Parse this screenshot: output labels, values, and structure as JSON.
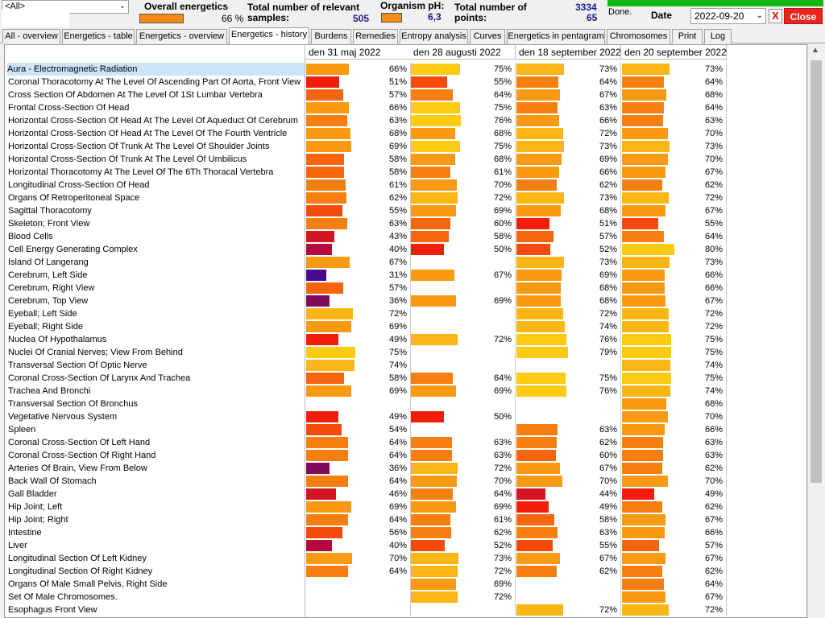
{
  "toolbar": {
    "filter_value": "<All>",
    "overall_energetics_label": "Overall energetics",
    "overall_energetics_value": "66 %",
    "overall_energetics_color": "#f58a14",
    "relevant_samples_label_1": "Total number of relevant",
    "relevant_samples_label_2": "samples:",
    "relevant_samples_value": "505",
    "organism_ph_label": "Organism pH:",
    "organism_ph_value": "6,3",
    "organism_ph_color": "#f58a14",
    "total_points_label_1": "Total number of",
    "total_points_label_2": "points:",
    "total_points_value_1": "3334",
    "total_points_value_2": "65",
    "status": "Done.",
    "date_label": "Date",
    "date_value": "2022-09-20",
    "x_label": "X",
    "close_label": "Close"
  },
  "tabs": [
    {
      "label": "All - overview"
    },
    {
      "label": "Energetics - table"
    },
    {
      "label": "Energetics - overview"
    },
    {
      "label": "Energetics - history",
      "active": true
    },
    {
      "label": "Burdens"
    },
    {
      "label": "Remedies"
    },
    {
      "label": "Entropy analysis"
    },
    {
      "label": "Curves"
    },
    {
      "label": "Energetics in pentagram"
    },
    {
      "label": "Chromosomes"
    },
    {
      "label": "Print"
    },
    {
      "label": "Log"
    }
  ],
  "columns": [
    "den 31 maj 2022",
    "den 28 augusti 2022",
    "den 18 september 2022",
    "den 20 september 2022"
  ],
  "rows": [
    {
      "name": "Aura - Electromagnetic Radiation",
      "values": [
        66,
        75,
        73,
        73
      ],
      "selected": true
    },
    {
      "name": "Coronal Thoracotomy At The Level Of Ascending Part Of Aorta, Front View",
      "values": [
        51,
        55,
        64,
        64
      ]
    },
    {
      "name": "Cross Section Of Abdomen At The Level Of 1St Lumbar Vertebra",
      "values": [
        57,
        64,
        67,
        68
      ]
    },
    {
      "name": "Frontal Cross-Section Of Head",
      "values": [
        66,
        75,
        63,
        64
      ]
    },
    {
      "name": "Horizontal Cross-Section Of Head At The Level Of Aqueduct Of Cerebrum",
      "values": [
        63,
        76,
        66,
        63
      ]
    },
    {
      "name": "Horizontal Cross-Section Of Head At The Level Of The Fourth Ventricle",
      "values": [
        68,
        68,
        72,
        70
      ]
    },
    {
      "name": "Horizontal Cross-Section Of Trunk At The Level Of Shoulder Joints",
      "values": [
        69,
        75,
        73,
        73
      ]
    },
    {
      "name": "Horizontal Cross-Section Of Trunk At The Level Of Umbilicus",
      "values": [
        58,
        68,
        69,
        70
      ]
    },
    {
      "name": "Horizontal Thoracotomy At The Level Of The 6Th Thoracal Vertebra",
      "values": [
        58,
        61,
        66,
        67
      ]
    },
    {
      "name": "Longitudinal Cross-Section Of Head",
      "values": [
        61,
        70,
        62,
        62
      ]
    },
    {
      "name": "Organs Of Retroperitoneal Space",
      "values": [
        62,
        72,
        73,
        72
      ]
    },
    {
      "name": "Sagittal Thoracotomy",
      "values": [
        55,
        69,
        68,
        67
      ]
    },
    {
      "name": "Skeleton; Front View",
      "values": [
        63,
        60,
        51,
        55
      ]
    },
    {
      "name": "Blood Cells",
      "values": [
        43,
        58,
        57,
        64
      ]
    },
    {
      "name": "Cell Energy Generating Complex",
      "values": [
        40,
        50,
        52,
        80
      ]
    },
    {
      "name": "Island Of Langerang",
      "values": [
        67,
        null,
        73,
        73
      ]
    },
    {
      "name": "Cerebrum, Left Side",
      "values": [
        31,
        67,
        69,
        66
      ]
    },
    {
      "name": "Cerebrum, Right View",
      "values": [
        57,
        null,
        68,
        66
      ]
    },
    {
      "name": "Cerebrum, Top View",
      "values": [
        36,
        69,
        68,
        67
      ]
    },
    {
      "name": "Eyeball; Left Side",
      "values": [
        72,
        null,
        72,
        72
      ]
    },
    {
      "name": "Eyeball; Right Side",
      "values": [
        69,
        null,
        74,
        72
      ]
    },
    {
      "name": "Nuclea Of Hypothalamus",
      "values": [
        49,
        72,
        76,
        75
      ]
    },
    {
      "name": "Nuclei Of Cranial Nerves; View From Behind",
      "values": [
        75,
        null,
        79,
        75
      ]
    },
    {
      "name": "Transversal Section Of Optic Nerve",
      "values": [
        74,
        null,
        null,
        74
      ]
    },
    {
      "name": "Coronal Cross-Section Of Larynx And Trachea",
      "values": [
        58,
        64,
        75,
        75
      ]
    },
    {
      "name": "Trachea And Bronchi",
      "values": [
        69,
        69,
        76,
        74
      ]
    },
    {
      "name": "Transversal Section Of Bronchus",
      "values": [
        null,
        null,
        null,
        68
      ]
    },
    {
      "name": "Vegetative Nervous System",
      "values": [
        49,
        50,
        null,
        70
      ]
    },
    {
      "name": "Spleen",
      "values": [
        54,
        null,
        63,
        66
      ]
    },
    {
      "name": "Coronal Cross-Section Of Left Hand",
      "values": [
        64,
        63,
        62,
        63
      ]
    },
    {
      "name": "Coronal Cross-Section Of Right Hand",
      "values": [
        64,
        63,
        60,
        63
      ]
    },
    {
      "name": "Arteries Of Brain, View From Below",
      "values": [
        36,
        72,
        67,
        62
      ]
    },
    {
      "name": "Back Wall Of Stomach",
      "values": [
        64,
        70,
        70,
        70
      ]
    },
    {
      "name": "Gall Bladder",
      "values": [
        46,
        64,
        44,
        49
      ]
    },
    {
      "name": "Hip Joint; Left",
      "values": [
        69,
        69,
        49,
        62
      ]
    },
    {
      "name": "Hip Joint; Right",
      "values": [
        64,
        61,
        58,
        67
      ]
    },
    {
      "name": "Intestine",
      "values": [
        56,
        62,
        63,
        66
      ]
    },
    {
      "name": "Liver",
      "values": [
        40,
        52,
        55,
        57
      ]
    },
    {
      "name": "Longitudinal Section Of Left Kidney",
      "values": [
        70,
        73,
        67,
        67
      ]
    },
    {
      "name": "Longitudinal Section Of Right Kidney",
      "values": [
        64,
        72,
        62,
        62
      ]
    },
    {
      "name": "Organs Of Male Small Pelvis, Right Side",
      "values": [
        null,
        69,
        null,
        64
      ]
    },
    {
      "name": "Set Of Male Chromosomes.",
      "values": [
        null,
        72,
        null,
        67
      ]
    },
    {
      "name": "Esophagus Front View",
      "values": [
        null,
        null,
        72,
        72
      ]
    }
  ],
  "colors": {
    "c30": "#4b0b8f",
    "c35": "#820a5a",
    "c40": "#b3093c",
    "c45": "#d41420",
    "c50": "#f21e0a",
    "c55": "#f64a0a",
    "c60": "#f7650c",
    "c65": "#f77f10",
    "c70": "#f99a12",
    "c73": "#fab614",
    "c77": "#fdcc12"
  }
}
